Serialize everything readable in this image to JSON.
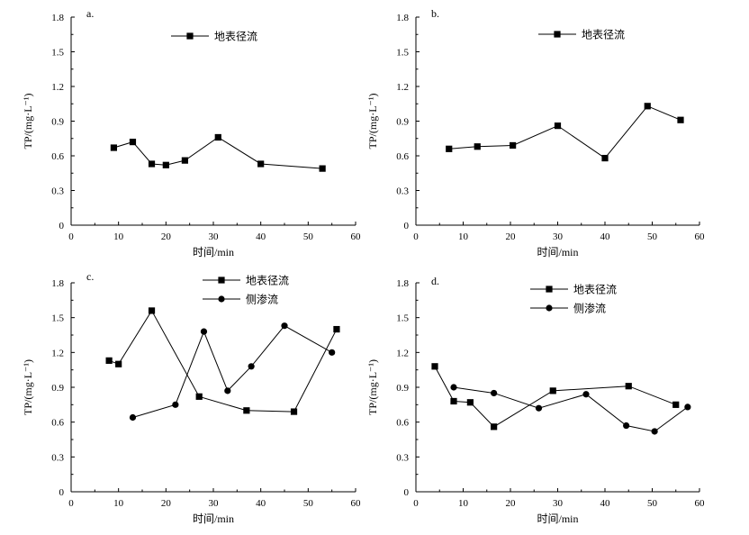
{
  "chart_data": [
    {
      "type": "line",
      "panel_label": "a.",
      "xlabel": "时间/min",
      "ylabel": "TP/(mg·L⁻¹)",
      "xlim": [
        0,
        60
      ],
      "ylim": [
        0,
        1.8
      ],
      "xticks": [
        "0",
        "10",
        "20",
        "30",
        "40",
        "50",
        "60"
      ],
      "yticks": [
        "0",
        "0.3",
        "0.6",
        "0.9",
        "1.2",
        "1.5",
        "1.8"
      ],
      "legend_position": "top",
      "series": [
        {
          "name": "地表径流",
          "marker": "square",
          "x": [
            9,
            13,
            17,
            20,
            24,
            31,
            40,
            53
          ],
          "y": [
            0.67,
            0.72,
            0.53,
            0.52,
            0.56,
            0.76,
            0.53,
            0.49
          ]
        }
      ]
    },
    {
      "type": "line",
      "panel_label": "b.",
      "xlabel": "时间/min",
      "ylabel": "TP/(mg·L⁻¹)",
      "xlim": [
        0,
        60
      ],
      "ylim": [
        0,
        1.8
      ],
      "xticks": [
        "0",
        "10",
        "20",
        "30",
        "40",
        "50",
        "60"
      ],
      "yticks": [
        "0",
        "0.3",
        "0.6",
        "0.9",
        "1.2",
        "1.5",
        "1.8"
      ],
      "legend_position": "top",
      "series": [
        {
          "name": "地表径流",
          "marker": "square",
          "x": [
            7,
            13,
            20.5,
            30,
            40,
            49,
            56
          ],
          "y": [
            0.66,
            0.68,
            0.69,
            0.86,
            0.58,
            1.03,
            0.91
          ]
        }
      ]
    },
    {
      "type": "line",
      "panel_label": "c.",
      "xlabel": "时间/min",
      "ylabel": "TP/(mg·L⁻¹)",
      "xlim": [
        0,
        60
      ],
      "ylim": [
        0,
        1.8
      ],
      "xticks": [
        "0",
        "10",
        "20",
        "30",
        "40",
        "50",
        "60"
      ],
      "yticks": [
        "0",
        "0.3",
        "0.6",
        "0.9",
        "1.2",
        "1.5",
        "1.8"
      ],
      "legend_position": "top",
      "series": [
        {
          "name": "地表径流",
          "marker": "square",
          "x": [
            8,
            10,
            17,
            27,
            37,
            47,
            56
          ],
          "y": [
            1.13,
            1.1,
            1.56,
            0.82,
            0.7,
            0.69,
            1.4
          ]
        },
        {
          "name": "侧渗流",
          "marker": "circle",
          "x": [
            13,
            22,
            28,
            33,
            38,
            45,
            55
          ],
          "y": [
            0.64,
            0.75,
            1.38,
            0.87,
            1.08,
            1.43,
            1.2
          ]
        }
      ]
    },
    {
      "type": "line",
      "panel_label": "d.",
      "xlabel": "时间/min",
      "ylabel": "TP/(mg·L⁻¹)",
      "xlim": [
        0,
        60
      ],
      "ylim": [
        0,
        1.8
      ],
      "xticks": [
        "0",
        "10",
        "20",
        "30",
        "40",
        "50",
        "60"
      ],
      "yticks": [
        "0",
        "0.3",
        "0.6",
        "0.9",
        "1.2",
        "1.5",
        "1.8"
      ],
      "legend_position": "top",
      "series": [
        {
          "name": "地表径流",
          "marker": "square",
          "x": [
            4,
            8,
            11.5,
            16.5,
            29,
            45,
            55
          ],
          "y": [
            1.08,
            0.78,
            0.77,
            0.56,
            0.87,
            0.91,
            0.75
          ]
        },
        {
          "name": "侧渗流",
          "marker": "circle",
          "x": [
            8,
            16.5,
            26,
            36,
            44.5,
            50.5,
            57.5
          ],
          "y": [
            0.9,
            0.85,
            0.72,
            0.84,
            0.57,
            0.52,
            0.73
          ]
        }
      ]
    }
  ]
}
